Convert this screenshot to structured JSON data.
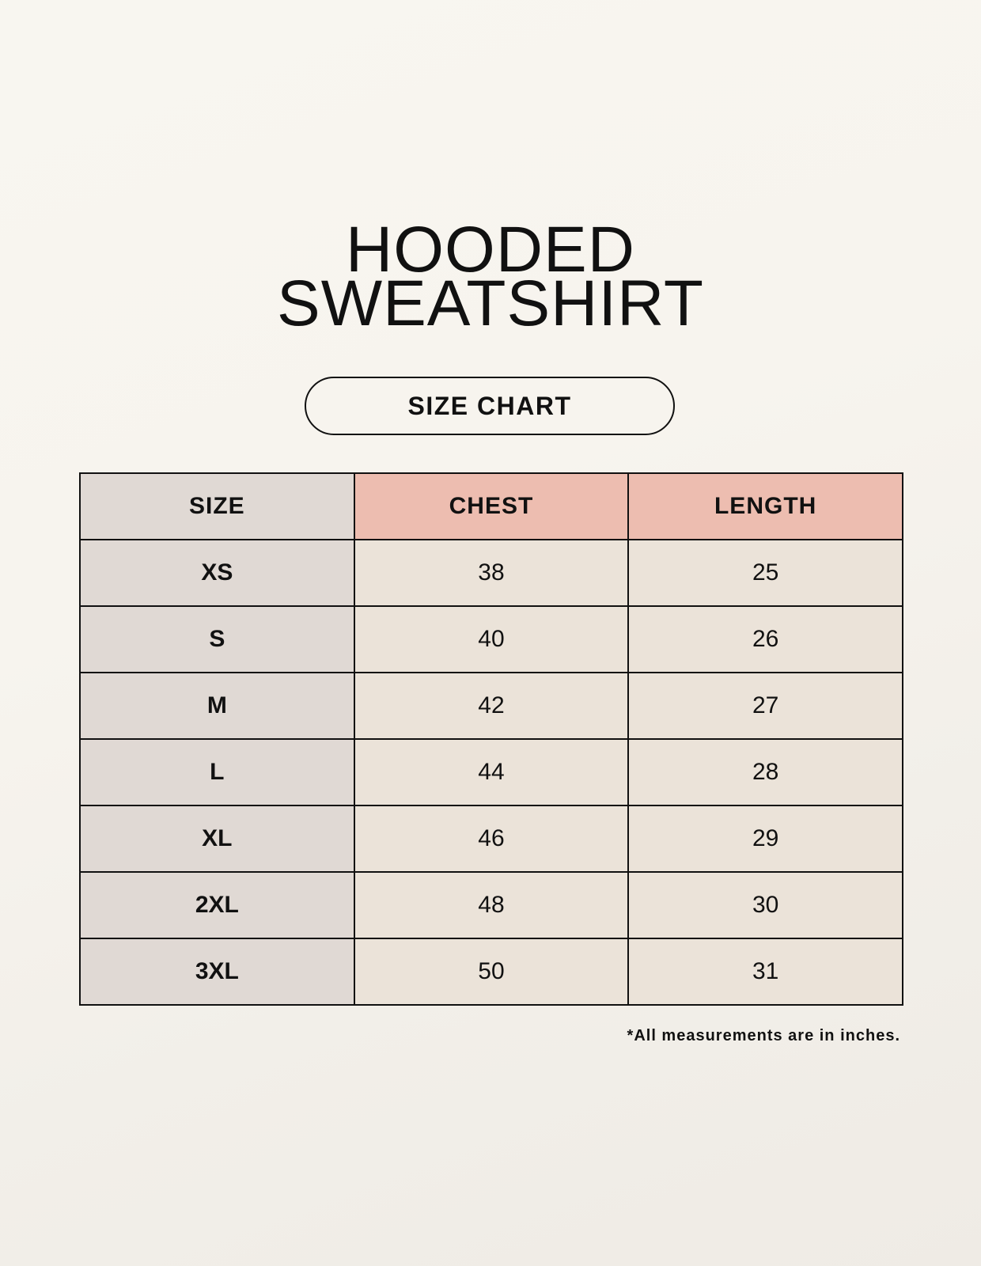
{
  "title": {
    "line1": "HOODED",
    "line2": "SWEATSHIRT"
  },
  "subtitle": "SIZE CHART",
  "table": {
    "headers": [
      "SIZE",
      "CHEST",
      "LENGTH"
    ],
    "rows": [
      [
        "XS",
        "38",
        "25"
      ],
      [
        "S",
        "40",
        "26"
      ],
      [
        "M",
        "42",
        "27"
      ],
      [
        "L",
        "44",
        "28"
      ],
      [
        "XL",
        "46",
        "29"
      ],
      [
        "2XL",
        "48",
        "30"
      ],
      [
        "3XL",
        "50",
        "31"
      ]
    ]
  },
  "footnote": "*All measurements are in inches.",
  "colors": {
    "size_column": "#e0d9d4",
    "header_accent": "#edbdb0",
    "value_cells": "#ebe3d9",
    "background": "#f7f4ee"
  }
}
